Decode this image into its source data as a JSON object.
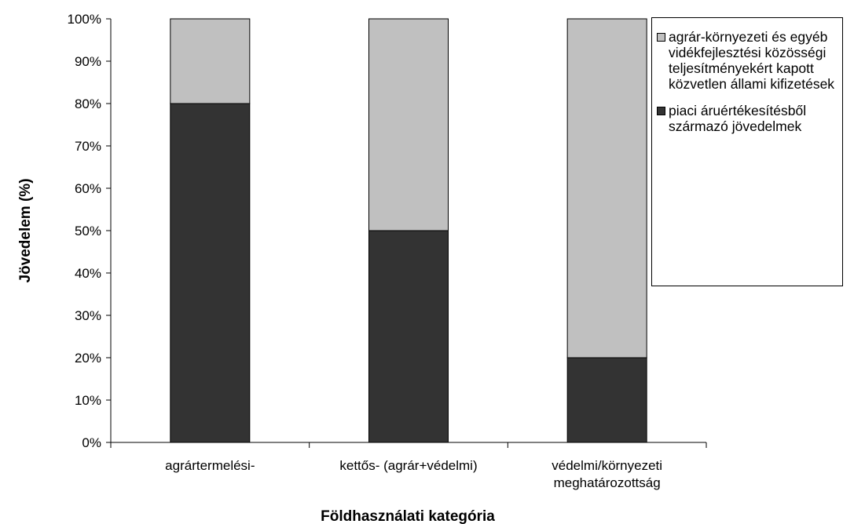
{
  "chart_data": {
    "type": "bar",
    "stacked": true,
    "categories": [
      [
        "agrártermelési-"
      ],
      [
        "kettős- (agrár+védelmi)"
      ],
      [
        "védelmi/környezeti",
        "meghatározottság"
      ]
    ],
    "series": [
      {
        "name": "piaci áruértékesítésből származó jövedelmek",
        "values": [
          80,
          50,
          20
        ],
        "color": "#333333"
      },
      {
        "name": "agrár-környezeti és egyéb vidékfejlesztési közösségi teljesítményekért kapott közvetlen állami kifizetések",
        "values": [
          20,
          50,
          80
        ],
        "color": "#c0c0c0"
      }
    ],
    "xlabel": "Földhasználati kategória",
    "ylabel": "Jövedelem (%)",
    "ylim": [
      0,
      100
    ],
    "yticks": [
      "0%",
      "10%",
      "20%",
      "30%",
      "40%",
      "50%",
      "60%",
      "70%",
      "80%",
      "90%",
      "100%"
    ],
    "grid": false,
    "legend_position": "right"
  },
  "legend": [
    {
      "label": "agrár-környezeti és egyéb vidékfejlesztési közösségi teljesítményekért kapott közvetlen állami kifizetések",
      "color": "#c0c0c0"
    },
    {
      "label": "piaci áruértékesítésből származó jövedelmek",
      "color": "#333333"
    }
  ]
}
